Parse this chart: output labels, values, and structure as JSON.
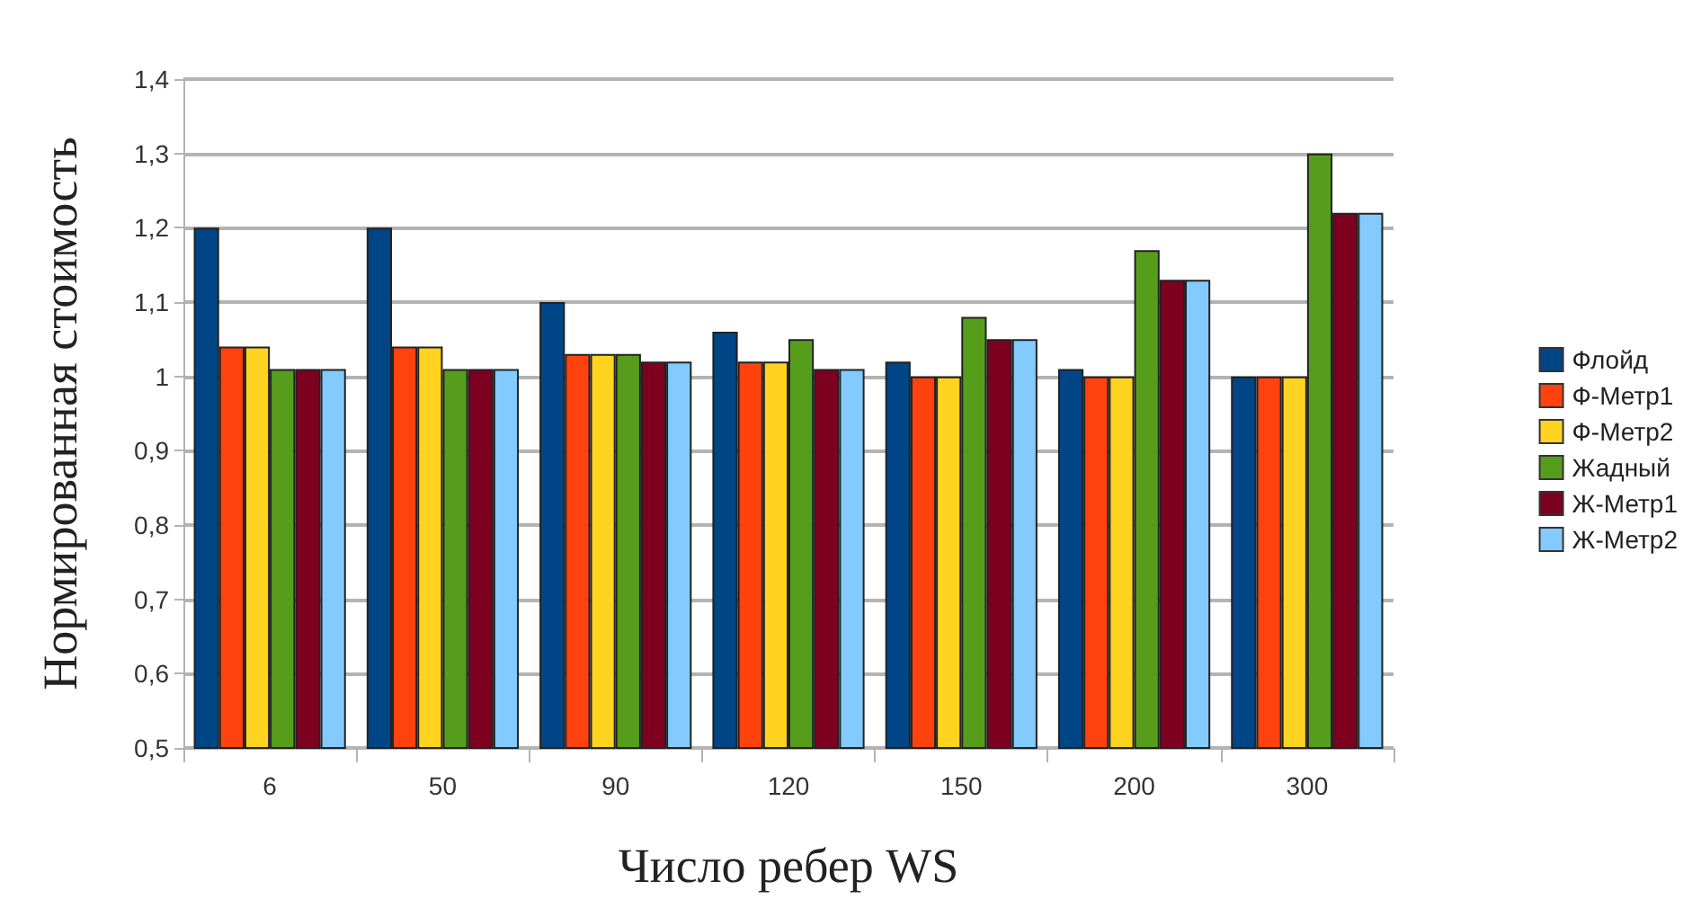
{
  "chart_data": {
    "type": "bar",
    "xlabel": "Число ребер WS",
    "ylabel": "Нормированная стоимость",
    "categories": [
      "6",
      "50",
      "90",
      "120",
      "150",
      "200",
      "300"
    ],
    "series": [
      {
        "name": "Флойд",
        "color": "#004586",
        "values": [
          1.2,
          1.2,
          1.1,
          1.06,
          1.02,
          1.01,
          1.0
        ]
      },
      {
        "name": "Ф-Метр1",
        "color": "#ff420e",
        "values": [
          1.04,
          1.04,
          1.03,
          1.02,
          1.0,
          1.0,
          1.0
        ]
      },
      {
        "name": "Ф-Метр2",
        "color": "#ffd320",
        "values": [
          1.04,
          1.04,
          1.03,
          1.02,
          1.0,
          1.0,
          1.0
        ]
      },
      {
        "name": "Жадный",
        "color": "#579d1c",
        "values": [
          1.01,
          1.01,
          1.03,
          1.05,
          1.08,
          1.17,
          1.3
        ]
      },
      {
        "name": "Ж-Метр1",
        "color": "#7e0021",
        "values": [
          1.01,
          1.01,
          1.02,
          1.01,
          1.05,
          1.13,
          1.22
        ]
      },
      {
        "name": "Ж-Метр2",
        "color": "#83caff",
        "values": [
          1.01,
          1.01,
          1.02,
          1.01,
          1.05,
          1.13,
          1.22
        ]
      }
    ],
    "ylim": [
      0.5,
      1.4
    ],
    "yticks": [
      {
        "value": 0.5,
        "label": "0,5"
      },
      {
        "value": 0.6,
        "label": "0,6"
      },
      {
        "value": 0.7,
        "label": "0,7"
      },
      {
        "value": 0.8,
        "label": "0,8"
      },
      {
        "value": 0.9,
        "label": "0,9"
      },
      1,
      {
        "value": 1.1,
        "label": "1,1"
      },
      {
        "value": 1.2,
        "label": "1,2"
      },
      {
        "value": 1.3,
        "label": "1,3"
      },
      {
        "value": 1.4,
        "label": "1,4"
      }
    ],
    "grid": "y",
    "legend": "right"
  }
}
